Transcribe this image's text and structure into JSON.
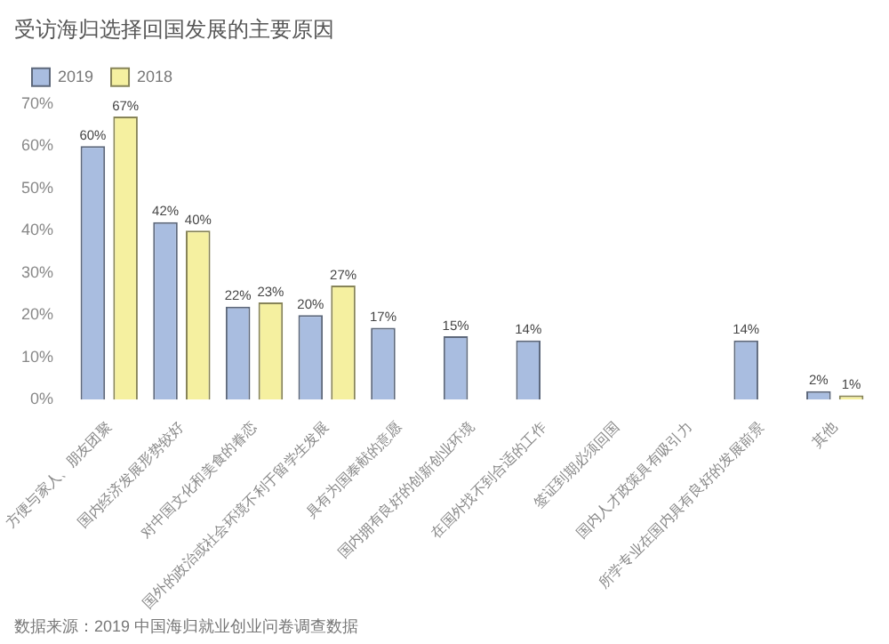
{
  "chart_data": {
    "type": "bar",
    "title": "受访海归选择回国发展的主要原因",
    "categories": [
      "方便与家人、朋友团聚",
      "国内经济发展形势较好",
      "对中国文化和美食的眷恋",
      "国外的政治或社会环境不利于留学生发展",
      "具有为国奉献的意愿",
      "国内拥有良好的创新创业环境",
      "在国外找不到合适的工作",
      "签证到期必须回国",
      "国内人才政策具有吸引力",
      "所学专业在国内具有良好的发展前景",
      "其他"
    ],
    "series": [
      {
        "name": "2019",
        "color": "#a9bde0",
        "values": [
          60,
          42,
          22,
          20,
          17,
          15,
          14,
          null,
          null,
          14,
          2
        ],
        "value_labels": [
          "60%",
          "42%",
          "22%",
          "20%",
          "17%",
          "15%",
          "14%",
          null,
          null,
          "14%",
          "2%"
        ]
      },
      {
        "name": "2018",
        "color": "#f5f0a0",
        "values": [
          67,
          40,
          23,
          27,
          null,
          null,
          null,
          null,
          null,
          null,
          1
        ],
        "value_labels": [
          "67%",
          "40%",
          "23%",
          "27%",
          null,
          null,
          null,
          null,
          null,
          null,
          "1%"
        ]
      }
    ],
    "ylim": [
      0,
      70
    ],
    "yticks": [
      {
        "value": 0,
        "label": "0%"
      },
      {
        "value": 10,
        "label": "10%"
      },
      {
        "value": 20,
        "label": "20%"
      },
      {
        "value": 30,
        "label": "30%"
      },
      {
        "value": 40,
        "label": "40%"
      },
      {
        "value": 50,
        "label": "50%"
      },
      {
        "value": 60,
        "label": "60%"
      },
      {
        "value": 70,
        "label": "70%"
      }
    ],
    "grid": false,
    "legend": "top left",
    "annotations": [
      "数据来源：2019 中国海归就业创业问卷调查数据"
    ]
  }
}
